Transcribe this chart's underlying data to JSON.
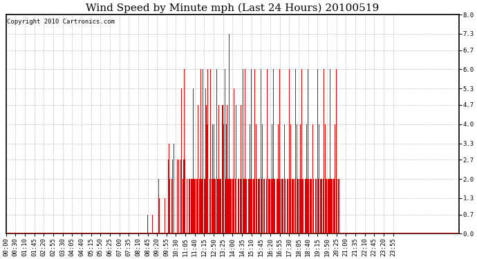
{
  "title": "Wind Speed by Minute mph (Last 24 Hours) 20100519",
  "copyright_text": "Copyright 2010 Cartronics.com",
  "bar_color": "#dd0000",
  "background_color": "#ffffff",
  "plot_bg_color": "#ffffff",
  "grid_color": "#999999",
  "yticks": [
    0.0,
    0.7,
    1.3,
    2.0,
    2.7,
    3.3,
    4.0,
    4.7,
    5.3,
    6.0,
    6.7,
    7.3,
    8.0
  ],
  "ylim": [
    0,
    8.0
  ],
  "title_fontsize": 11,
  "tick_fontsize": 6.5,
  "copyright_fontsize": 6.5,
  "total_minutes": 1440,
  "xtick_positions": [
    0,
    30,
    60,
    90,
    120,
    150,
    180,
    210,
    240,
    270,
    300,
    330,
    360,
    390,
    420,
    450,
    480,
    510,
    540,
    570,
    600,
    630,
    660,
    690,
    720,
    750,
    780,
    810,
    840,
    870,
    900,
    930,
    960,
    990,
    1020,
    1050,
    1080,
    1110,
    1140,
    1170,
    1200,
    1230,
    1260,
    1290,
    1320,
    1350,
    1380,
    1410
  ],
  "xtick_labels": [
    "00:00",
    "00:30",
    "01:10",
    "01:45",
    "02:20",
    "02:55",
    "03:30",
    "04:05",
    "04:40",
    "05:15",
    "05:50",
    "06:25",
    "07:00",
    "07:35",
    "08:10",
    "08:45",
    "09:20",
    "09:55",
    "10:30",
    "11:05",
    "11:40",
    "12:15",
    "12:50",
    "13:25",
    "14:00",
    "14:35",
    "15:10",
    "15:45",
    "16:20",
    "16:55",
    "17:30",
    "18:05",
    "18:40",
    "19:15",
    "19:50",
    "20:25",
    "21:00",
    "21:35",
    "22:10",
    "22:45",
    "23:20",
    "23:55",
    "",
    "",
    "",
    "",
    "",
    ""
  ]
}
